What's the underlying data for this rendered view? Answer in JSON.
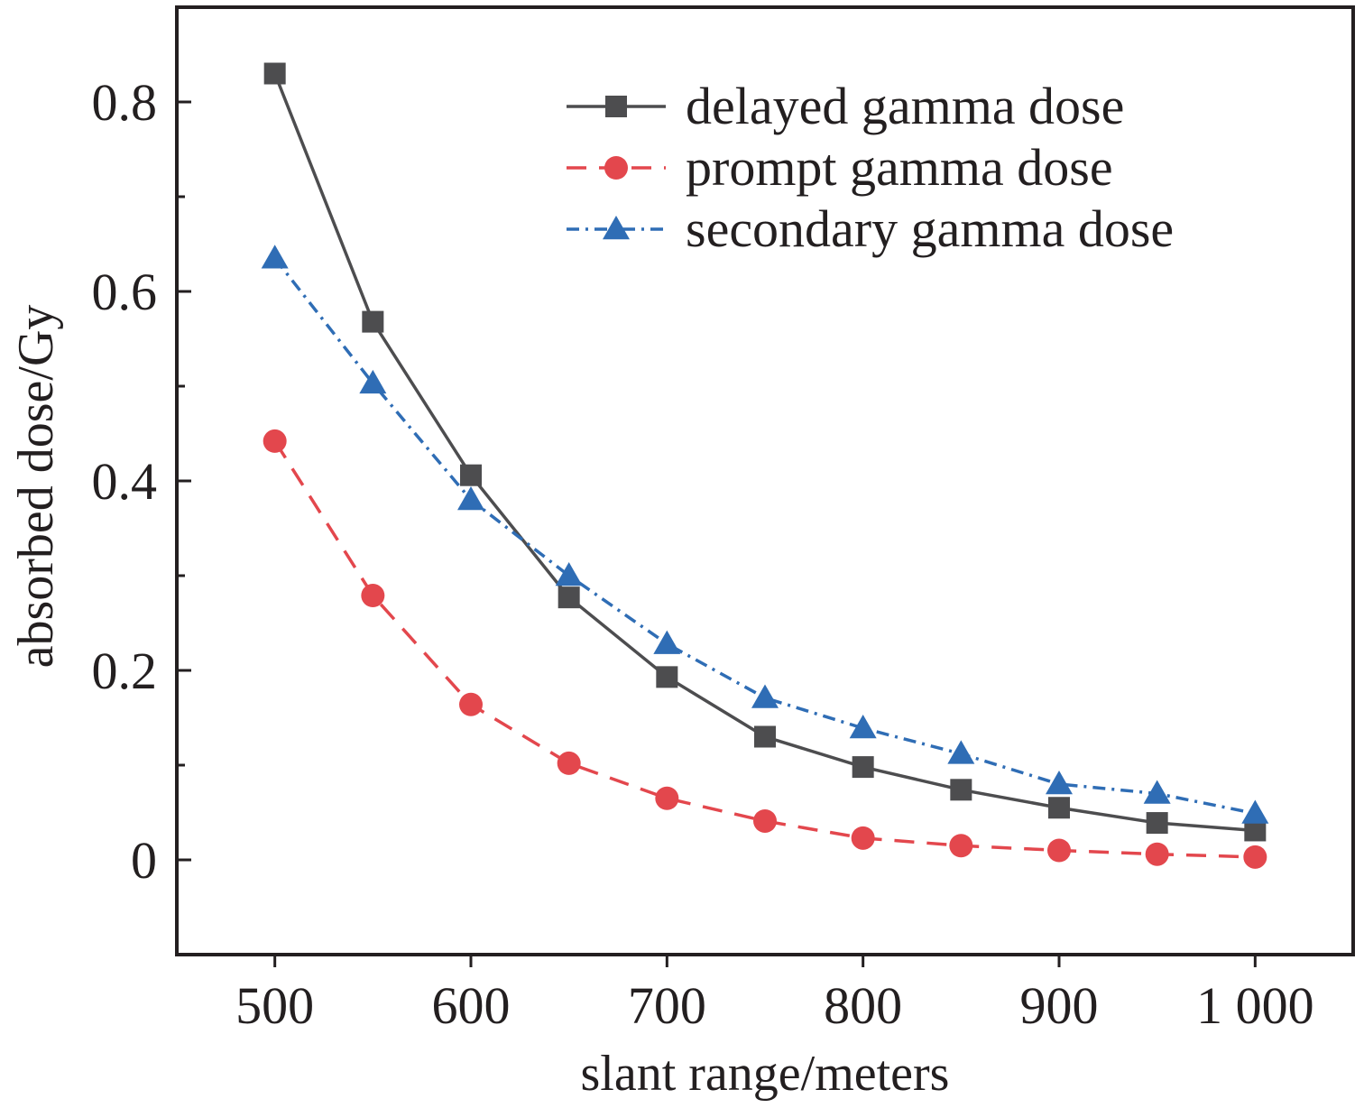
{
  "chart_data": {
    "type": "line",
    "title": "",
    "xlabel": "slant range/meters",
    "ylabel": "absorbed dose/Gy",
    "xlim": [
      450,
      1050
    ],
    "ylim": [
      -0.1,
      0.9
    ],
    "xticks": [
      500,
      600,
      700,
      800,
      900,
      1000
    ],
    "xtick_labels": [
      "500",
      "600",
      "700",
      "800",
      "900",
      "1 000"
    ],
    "yticks": [
      0,
      0.2,
      0.4,
      0.6,
      0.8
    ],
    "ytick_labels": [
      "0",
      "0.2",
      "0.4",
      "0.6",
      "0.8"
    ],
    "y_minor_ticks": [
      -0.1,
      0.1,
      0.3,
      0.5,
      0.7
    ],
    "grid": false,
    "legend_position": "top-right",
    "x": [
      500,
      550,
      600,
      650,
      700,
      750,
      800,
      850,
      900,
      950,
      1000
    ],
    "series": [
      {
        "name": "delayed gamma dose",
        "values": [
          0.83,
          0.568,
          0.406,
          0.277,
          0.193,
          0.13,
          0.098,
          0.074,
          0.055,
          0.039,
          0.031
        ],
        "color": "#4d4d4f",
        "marker": "square",
        "line_style": "solid"
      },
      {
        "name": "prompt gamma dose",
        "values": [
          0.442,
          0.279,
          0.164,
          0.102,
          0.065,
          0.041,
          0.023,
          0.015,
          0.01,
          0.006,
          0.003
        ],
        "color": "#e3474d",
        "marker": "circle",
        "line_style": "dashed"
      },
      {
        "name": "secondary gamma dose",
        "values": [
          0.635,
          0.503,
          0.38,
          0.3,
          0.228,
          0.171,
          0.139,
          0.112,
          0.08,
          0.07,
          0.049
        ],
        "color": "#2f6db5",
        "marker": "triangle",
        "line_style": "dash-dot"
      }
    ]
  }
}
